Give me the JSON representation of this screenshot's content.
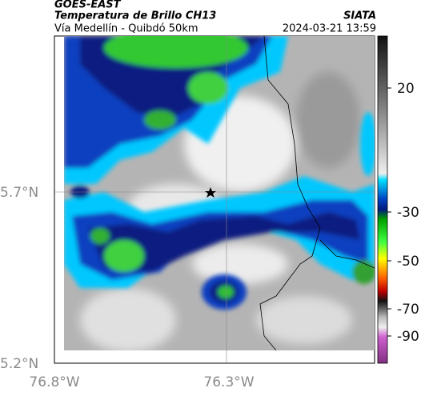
{
  "header": {
    "agency": "GOES-EAST",
    "title": "Temperatura de Brillo CH13",
    "source": "SIATA",
    "subtitle": "Vía Medellín - Quibdó 50km",
    "timestamp": "2024-03-21 13:59"
  },
  "map": {
    "lat_labels": [
      "5.7°N",
      "5.2°N"
    ],
    "lon_labels": [
      "76.8°W",
      "76.3°W"
    ]
  },
  "colorbar": {
    "ticks": [
      "20",
      "-30",
      "-50",
      "-70",
      "-90"
    ]
  }
}
